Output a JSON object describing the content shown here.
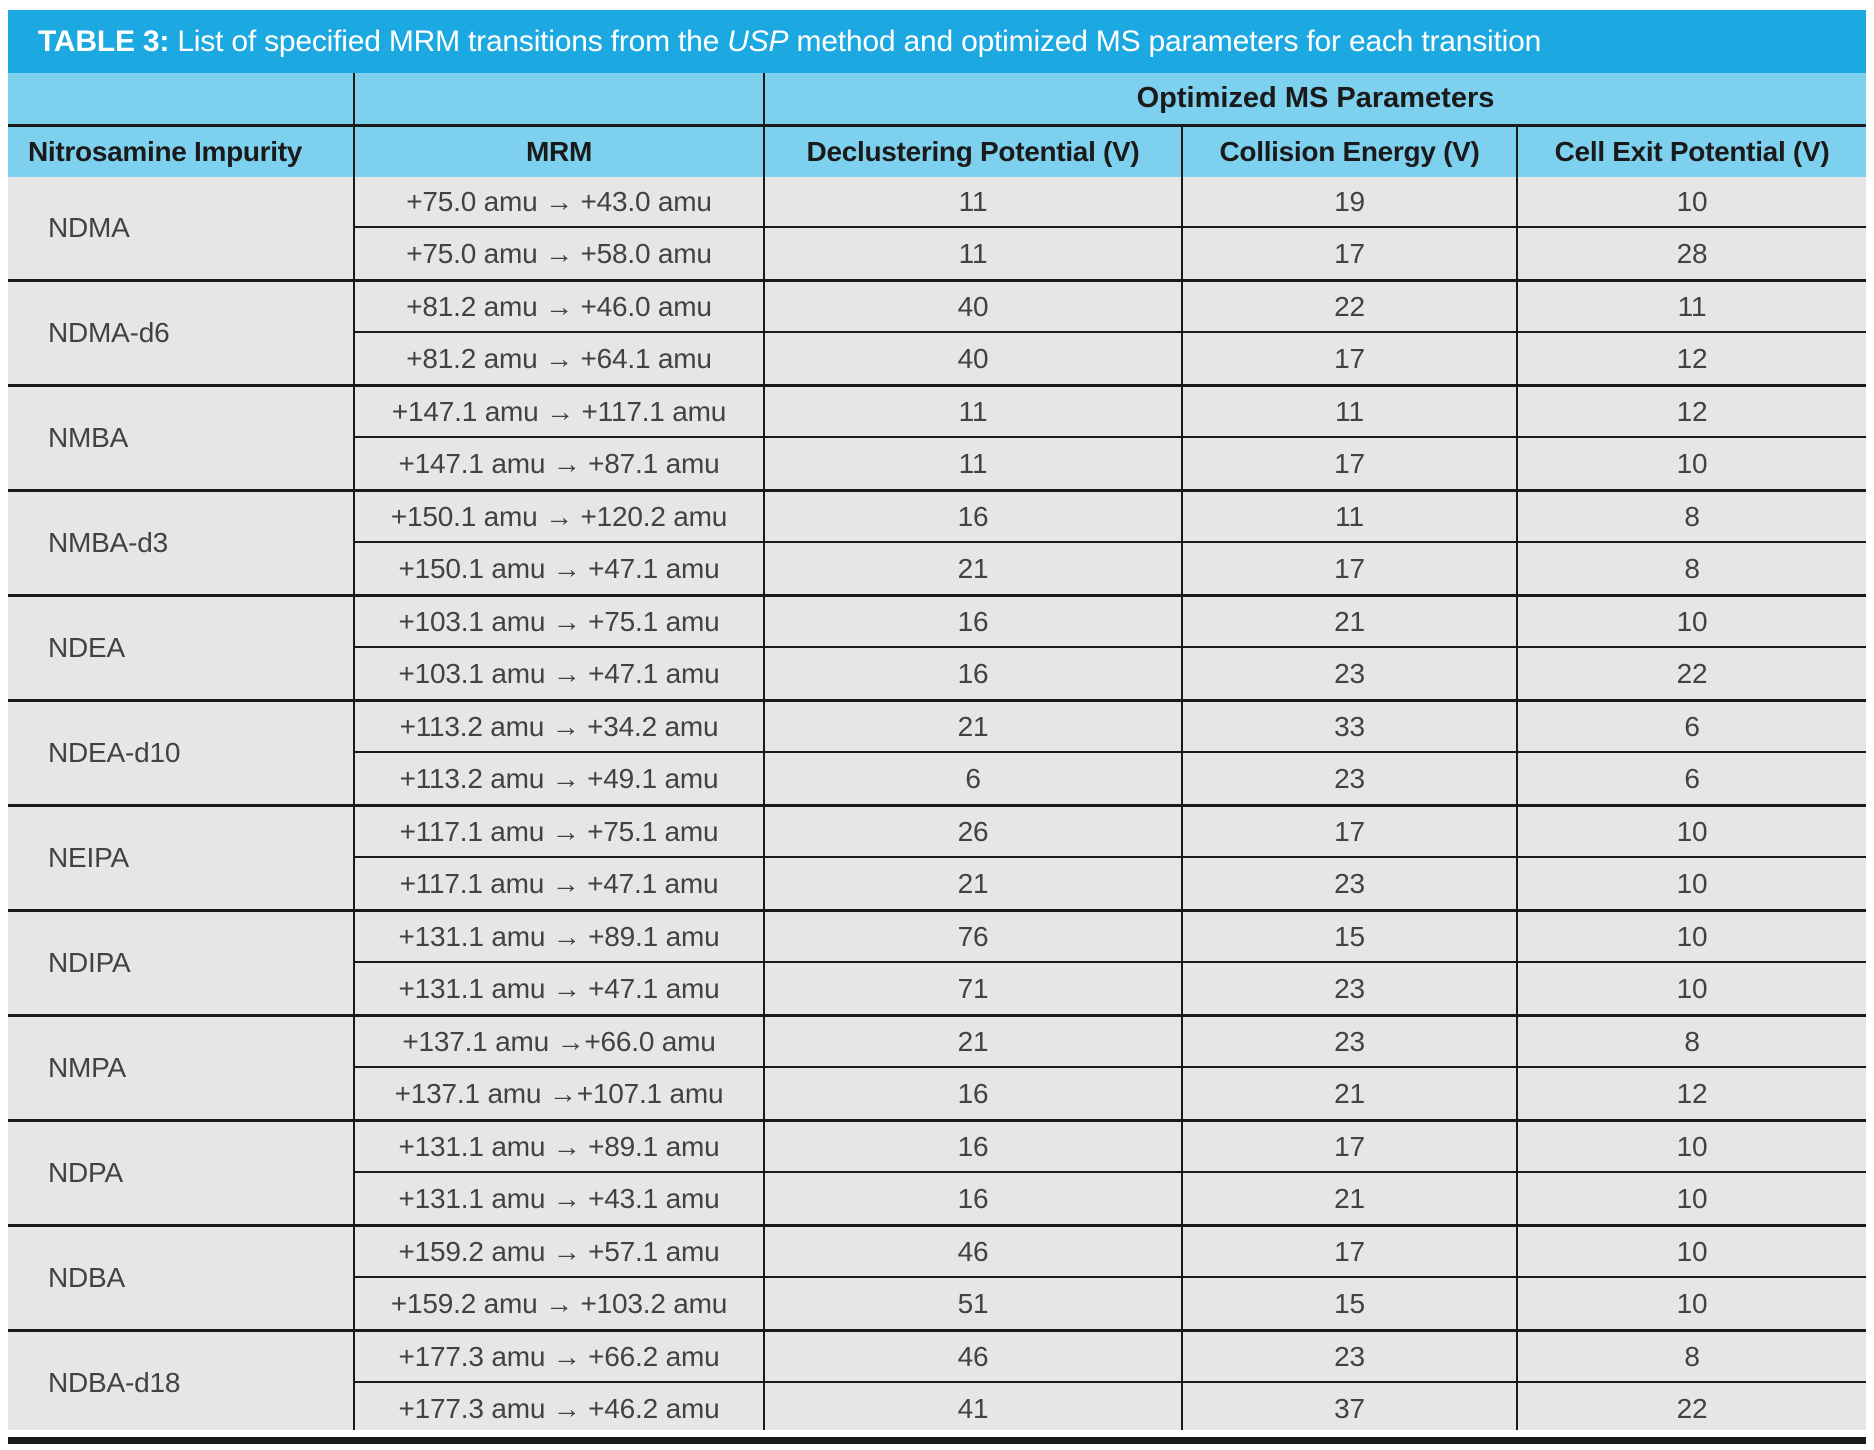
{
  "colors": {
    "title_bar_bg": "#1CA8E0",
    "header_bg": "#7DD0EE",
    "row_bg": "#E6E6E6",
    "line": "#1A1A1A",
    "title_text": "#FFFFFF",
    "body_text": "#424242"
  },
  "title": {
    "label": "TABLE 3:",
    "text_before_italic": " List of specified MRM transitions from the ",
    "italic_word": "USP",
    "text_after_italic": " method and optimized MS parameters for each transition"
  },
  "header": {
    "group_header": "Optimized MS Parameters",
    "columns": [
      "Nitrosamine Impurity",
      "MRM",
      "Declustering Potential (V)",
      "Collision Energy (V)",
      "Cell Exit Potential (V)"
    ]
  },
  "table": {
    "groups": [
      {
        "impurity": "NDMA",
        "rows": [
          {
            "mrm": "+75.0 amu → +43.0 amu",
            "dp": "11",
            "ce": "19",
            "cep": "10"
          },
          {
            "mrm": "+75.0 amu → +58.0 amu",
            "dp": "11",
            "ce": "17",
            "cep": "28"
          }
        ]
      },
      {
        "impurity": "NDMA-d6",
        "rows": [
          {
            "mrm": "+81.2 amu → +46.0 amu",
            "dp": "40",
            "ce": "22",
            "cep": "11"
          },
          {
            "mrm": "+81.2 amu → +64.1 amu",
            "dp": "40",
            "ce": "17",
            "cep": "12"
          }
        ]
      },
      {
        "impurity": "NMBA",
        "rows": [
          {
            "mrm": "+147.1 amu → +117.1 amu",
            "dp": "11",
            "ce": "11",
            "cep": "12"
          },
          {
            "mrm": "+147.1 amu → +87.1 amu",
            "dp": "11",
            "ce": "17",
            "cep": "10"
          }
        ]
      },
      {
        "impurity": "NMBA-d3",
        "rows": [
          {
            "mrm": "+150.1 amu → +120.2 amu",
            "dp": "16",
            "ce": "11",
            "cep": "8"
          },
          {
            "mrm": "+150.1 amu → +47.1 amu",
            "dp": "21",
            "ce": "17",
            "cep": "8"
          }
        ]
      },
      {
        "impurity": "NDEA",
        "rows": [
          {
            "mrm": "+103.1 amu → +75.1 amu",
            "dp": "16",
            "ce": "21",
            "cep": "10"
          },
          {
            "mrm": "+103.1 amu → +47.1 amu",
            "dp": "16",
            "ce": "23",
            "cep": "22"
          }
        ]
      },
      {
        "impurity": "NDEA-d10",
        "rows": [
          {
            "mrm": "+113.2 amu → +34.2 amu",
            "dp": "21",
            "ce": "33",
            "cep": "6"
          },
          {
            "mrm": "+113.2 amu → +49.1 amu",
            "dp": "6",
            "ce": "23",
            "cep": "6"
          }
        ]
      },
      {
        "impurity": "NEIPA",
        "rows": [
          {
            "mrm": "+117.1 amu → +75.1 amu",
            "dp": "26",
            "ce": "17",
            "cep": "10"
          },
          {
            "mrm": "+117.1 amu → +47.1 amu",
            "dp": "21",
            "ce": "23",
            "cep": "10"
          }
        ]
      },
      {
        "impurity": "NDIPA",
        "rows": [
          {
            "mrm": "+131.1 amu → +89.1 amu",
            "dp": "76",
            "ce": "15",
            "cep": "10"
          },
          {
            "mrm": "+131.1 amu → +47.1 amu",
            "dp": "71",
            "ce": "23",
            "cep": "10"
          }
        ]
      },
      {
        "impurity": "NMPA",
        "rows": [
          {
            "mrm": "+137.1 amu →+66.0 amu",
            "dp": "21",
            "ce": "23",
            "cep": "8"
          },
          {
            "mrm": "+137.1 amu →+107.1 amu",
            "dp": "16",
            "ce": "21",
            "cep": "12"
          }
        ]
      },
      {
        "impurity": "NDPA",
        "rows": [
          {
            "mrm": "+131.1 amu → +89.1 amu",
            "dp": "16",
            "ce": "17",
            "cep": "10"
          },
          {
            "mrm": "+131.1 amu → +43.1 amu",
            "dp": "16",
            "ce": "21",
            "cep": "10"
          }
        ]
      },
      {
        "impurity": "NDBA",
        "rows": [
          {
            "mrm": "+159.2 amu → +57.1 amu",
            "dp": "46",
            "ce": "17",
            "cep": "10"
          },
          {
            "mrm": "+159.2 amu → +103.2 amu",
            "dp": "51",
            "ce": "15",
            "cep": "10"
          }
        ]
      },
      {
        "impurity": "NDBA-d18",
        "rows": [
          {
            "mrm": "+177.3 amu → +66.2 amu",
            "dp": "46",
            "ce": "23",
            "cep": "8"
          },
          {
            "mrm": "+177.3 amu → +46.2 amu",
            "dp": "41",
            "ce": "37",
            "cep": "22"
          }
        ]
      }
    ]
  }
}
